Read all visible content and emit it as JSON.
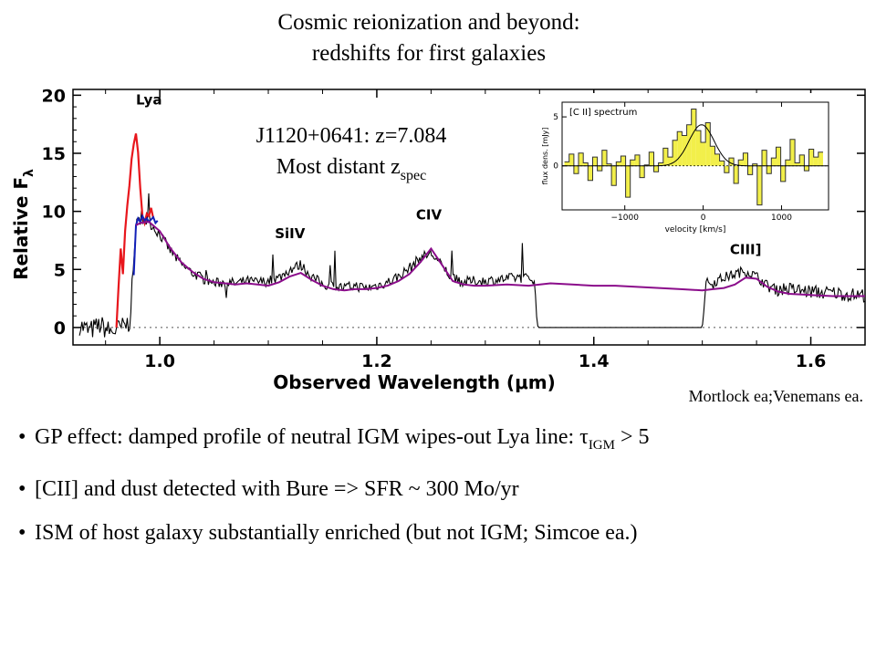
{
  "title": {
    "line1": "Cosmic reionization and beyond:",
    "line2": "redshifts for first galaxies"
  },
  "credit": "Mortlock ea;Venemans ea.",
  "bullets": [
    {
      "pre": "GP effect: damped profile of neutral IGM wipes-out Lya line: τ",
      "sub": "IGM",
      "post": " >  5"
    },
    {
      "pre": "[CII] and dust detected with Bure => SFR ~ 300 Mo/yr",
      "sub": "",
      "post": ""
    },
    {
      "pre": "ISM of host galaxy substantially enriched (but not IGM; Simcoe ea.)",
      "sub": "",
      "post": ""
    }
  ],
  "colors": {
    "observed": "#000000",
    "model": "#8b0d8b",
    "lya_peak": "#e8161c",
    "blue_segment": "#1220b8",
    "inset_fill": "#f2ef4a"
  },
  "chart_data": [
    {
      "type": "line",
      "xlabel": "Observed Wavelength (μm)",
      "ylabel": "Relative F",
      "ylabel_sub": "λ",
      "xlim": [
        0.92,
        1.65
      ],
      "ylim": [
        -1.5,
        20.5
      ],
      "xticks": [
        1.0,
        1.2,
        1.4,
        1.6
      ],
      "xtick_labels": [
        "1.0",
        "1.2",
        "1.4",
        "1.6"
      ],
      "yticks": [
        0,
        5,
        10,
        15,
        20
      ],
      "ytick_labels": [
        "0",
        "5",
        "10",
        "15",
        "20"
      ],
      "zero_line": "dotted",
      "annotation_main": "J1120+0641: z=7.084",
      "annotation_sub_pre": "Most distant z",
      "annotation_sub": "spec",
      "line_labels": [
        {
          "text": "Lya",
          "x": 0.99,
          "y": 19.2
        },
        {
          "text": "SiIV",
          "x": 1.12,
          "y": 7.7
        },
        {
          "text": "CIV",
          "x": 1.248,
          "y": 9.3
        },
        {
          "text": "CIII]",
          "x": 1.54,
          "y": 6.3
        }
      ],
      "series": [
        {
          "role": "lya_emission",
          "x": [
            0.96,
            0.962,
            0.964,
            0.966,
            0.968,
            0.97,
            0.972,
            0.974,
            0.976,
            0.978,
            0.98,
            0.982,
            0.984,
            0.986,
            0.988,
            0.99,
            0.992,
            0.994
          ],
          "y": [
            0.0,
            3.5,
            6.8,
            4.6,
            8.3,
            10.5,
            12.2,
            14.5,
            15.8,
            16.7,
            15.1,
            12.0,
            9.6,
            9.0,
            9.8,
            9.6,
            10.3,
            9.4
          ]
        },
        {
          "role": "blue_segment",
          "x": [
            0.976,
            0.978,
            0.98,
            0.982,
            0.984,
            0.986,
            0.988,
            0.99,
            0.992,
            0.994,
            0.996,
            0.998
          ],
          "y": [
            4.5,
            8.8,
            9.4,
            9.1,
            9.6,
            9.2,
            9.4,
            9.1,
            9.3,
            9.5,
            9.0,
            9.2
          ]
        },
        {
          "role": "observed_spectrum",
          "x": [
            0.926,
            0.935,
            0.945,
            0.955,
            0.965,
            0.972,
            0.975,
            0.978,
            0.982,
            0.99,
            1.0,
            1.01,
            1.02,
            1.03,
            1.04,
            1.05,
            1.06,
            1.07,
            1.08,
            1.09,
            1.1,
            1.11,
            1.12,
            1.13,
            1.14,
            1.15,
            1.16,
            1.17,
            1.18,
            1.19,
            1.2,
            1.21,
            1.22,
            1.23,
            1.24,
            1.25,
            1.26,
            1.27,
            1.28,
            1.29,
            1.3,
            1.31,
            1.32,
            1.33,
            1.345,
            1.348,
            1.5,
            1.503,
            1.51,
            1.52,
            1.53,
            1.54,
            1.55,
            1.56,
            1.57,
            1.58,
            1.59,
            1.6,
            1.61,
            1.62,
            1.63,
            1.64,
            1.65
          ],
          "y": [
            0.2,
            -0.3,
            0.2,
            -0.4,
            0.0,
            0.4,
            4.0,
            8.9,
            9.3,
            9.1,
            8.0,
            6.6,
            5.4,
            4.7,
            4.2,
            3.8,
            3.9,
            3.8,
            4.0,
            3.9,
            4.0,
            4.3,
            5.0,
            5.4,
            4.4,
            3.7,
            3.6,
            3.4,
            3.6,
            3.4,
            3.6,
            3.9,
            4.4,
            5.1,
            6.0,
            6.4,
            5.3,
            4.2,
            3.9,
            4.0,
            4.0,
            4.1,
            4.2,
            4.3,
            4.2,
            0.0,
            0.0,
            3.8,
            3.9,
            4.3,
            4.6,
            4.9,
            4.4,
            3.6,
            3.4,
            3.3,
            3.2,
            3.1,
            3.0,
            3.0,
            2.9,
            2.8,
            2.8
          ]
        },
        {
          "role": "model_spectrum",
          "x": [
            0.978,
            0.982,
            0.99,
            1.0,
            1.01,
            1.02,
            1.03,
            1.04,
            1.05,
            1.06,
            1.07,
            1.08,
            1.09,
            1.1,
            1.11,
            1.12,
            1.13,
            1.14,
            1.15,
            1.16,
            1.17,
            1.18,
            1.19,
            1.2,
            1.21,
            1.22,
            1.23,
            1.24,
            1.25,
            1.26,
            1.27,
            1.28,
            1.29,
            1.3,
            1.32,
            1.34,
            1.36,
            1.38,
            1.4,
            1.42,
            1.44,
            1.46,
            1.48,
            1.5,
            1.51,
            1.52,
            1.53,
            1.54,
            1.55,
            1.56,
            1.57,
            1.58,
            1.6,
            1.62,
            1.65
          ],
          "y": [
            8.8,
            9.0,
            9.1,
            8.3,
            6.8,
            5.6,
            4.8,
            4.2,
            3.9,
            3.8,
            3.7,
            3.8,
            3.7,
            3.6,
            3.9,
            4.4,
            4.7,
            4.1,
            3.6,
            3.3,
            3.2,
            3.3,
            3.3,
            3.4,
            3.6,
            4.0,
            4.6,
            5.6,
            6.8,
            5.4,
            4.0,
            3.7,
            3.6,
            3.6,
            3.7,
            3.6,
            3.8,
            3.7,
            3.6,
            3.6,
            3.5,
            3.4,
            3.3,
            3.2,
            3.3,
            3.4,
            3.7,
            4.3,
            4.2,
            3.5,
            3.1,
            2.9,
            2.8,
            2.7,
            2.7
          ]
        }
      ]
    },
    {
      "type": "bar",
      "title": "[C II] spectrum",
      "xlabel": "velocity [km/s]",
      "ylabel": "flux dens. [mJy]",
      "xlim": [
        -1800,
        1600
      ],
      "ylim": [
        -4.5,
        6.5
      ],
      "xticks": [
        -1000,
        0,
        1000
      ],
      "xtick_labels": [
        "−1000",
        "0",
        "1000"
      ],
      "yticks": [
        0,
        5
      ],
      "ytick_labels": [
        "0",
        "5"
      ],
      "bin_width": 60,
      "x": [
        -1740,
        -1680,
        -1620,
        -1560,
        -1500,
        -1440,
        -1380,
        -1320,
        -1260,
        -1200,
        -1140,
        -1080,
        -1020,
        -960,
        -900,
        -840,
        -780,
        -720,
        -660,
        -600,
        -540,
        -480,
        -420,
        -360,
        -300,
        -240,
        -180,
        -120,
        -60,
        0,
        60,
        120,
        180,
        240,
        300,
        360,
        420,
        480,
        540,
        600,
        660,
        720,
        780,
        840,
        900,
        960,
        1020,
        1080,
        1140,
        1200,
        1260,
        1320,
        1380,
        1440,
        1500
      ],
      "values": [
        0.4,
        1.2,
        -0.8,
        1.3,
        0.3,
        -1.5,
        0.9,
        -0.5,
        1.6,
        0.2,
        -2.0,
        0.4,
        1.0,
        -3.2,
        0.6,
        1.1,
        -1.2,
        0.1,
        1.4,
        -0.6,
        0.3,
        1.8,
        0.9,
        2.6,
        3.5,
        3.1,
        4.2,
        5.8,
        3.6,
        2.4,
        4.4,
        2.0,
        1.2,
        0.5,
        -0.7,
        0.8,
        -1.8,
        0.6,
        1.3,
        -0.9,
        0.2,
        -4.0,
        1.6,
        -0.8,
        0.8,
        1.9,
        -1.6,
        0.6,
        2.7,
        0.3,
        1.1,
        -0.5,
        1.7,
        0.9,
        1.4
      ],
      "fit": {
        "type": "gaussian",
        "amplitude": 4.2,
        "center": -20,
        "sigma": 160
      }
    }
  ]
}
